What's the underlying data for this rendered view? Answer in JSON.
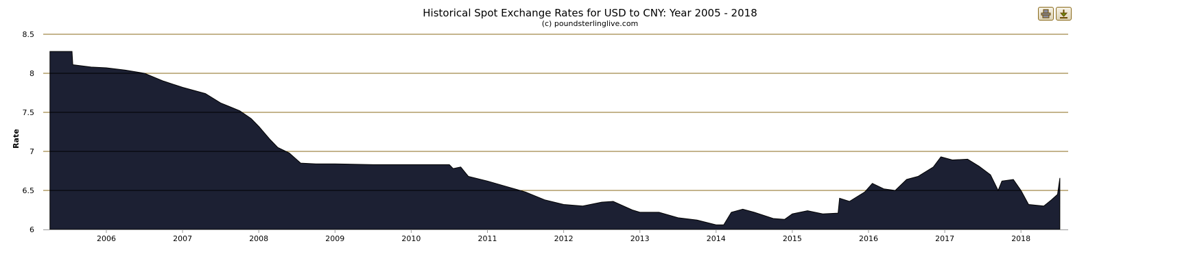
{
  "chart_data": {
    "type": "area",
    "title": "Historical Spot Exchange Rates for USD to CNY: Year 2005 - 2018",
    "subtitle": "(c) poundsterlinglive.com",
    "xlabel": "",
    "ylabel": "Rate",
    "ylim": [
      6,
      8.5
    ],
    "xlim": [
      2005.2,
      2018.65
    ],
    "yticks": [
      "6",
      "6.5",
      "7",
      "7.5",
      "8",
      "8.5"
    ],
    "xticks": [
      "2006",
      "2007",
      "2008",
      "2009",
      "2010",
      "2011",
      "2012",
      "2013",
      "2014",
      "2015",
      "2016",
      "2017",
      "2018"
    ],
    "grid": true,
    "colors": {
      "fill": "#1c2033",
      "grid": "#8a6a1a",
      "gridInside": "#000000"
    },
    "series": [
      {
        "name": "USD/CNY",
        "x": [
          2005.26,
          2005.55,
          2005.56,
          2005.8,
          2006.0,
          2006.25,
          2006.5,
          2006.75,
          2007.0,
          2007.3,
          2007.5,
          2007.6,
          2007.75,
          2007.9,
          2008.0,
          2008.15,
          2008.25,
          2008.4,
          2008.55,
          2008.75,
          2009.0,
          2009.5,
          2010.0,
          2010.45,
          2010.5,
          2010.55,
          2010.65,
          2010.75,
          2011.0,
          2011.25,
          2011.5,
          2011.75,
          2012.0,
          2012.25,
          2012.5,
          2012.65,
          2012.9,
          2013.0,
          2013.25,
          2013.5,
          2013.75,
          2014.0,
          2014.1,
          2014.2,
          2014.35,
          2014.5,
          2014.75,
          2014.9,
          2015.0,
          2015.2,
          2015.4,
          2015.6,
          2015.62,
          2015.75,
          2015.95,
          2016.05,
          2016.2,
          2016.35,
          2016.5,
          2016.65,
          2016.85,
          2016.95,
          2017.1,
          2017.3,
          2017.45,
          2017.6,
          2017.7,
          2017.75,
          2017.9,
          2018.0,
          2018.1,
          2018.3,
          2018.4,
          2018.48,
          2018.51
        ],
        "values": [
          8.28,
          8.28,
          8.11,
          8.08,
          8.07,
          8.04,
          8.0,
          7.9,
          7.82,
          7.74,
          7.62,
          7.58,
          7.52,
          7.42,
          7.32,
          7.15,
          7.05,
          6.98,
          6.85,
          6.84,
          6.84,
          6.83,
          6.83,
          6.83,
          6.83,
          6.78,
          6.8,
          6.68,
          6.62,
          6.55,
          6.48,
          6.38,
          6.32,
          6.3,
          6.35,
          6.36,
          6.25,
          6.22,
          6.22,
          6.15,
          6.12,
          6.06,
          6.06,
          6.22,
          6.26,
          6.22,
          6.14,
          6.13,
          6.2,
          6.24,
          6.2,
          6.21,
          6.4,
          6.36,
          6.48,
          6.59,
          6.52,
          6.5,
          6.64,
          6.68,
          6.8,
          6.93,
          6.89,
          6.9,
          6.81,
          6.7,
          6.5,
          6.62,
          6.64,
          6.5,
          6.32,
          6.3,
          6.38,
          6.45,
          6.66
        ]
      }
    ]
  },
  "toolbar": {
    "print_icon": "print-icon",
    "download_icon": "download-icon"
  }
}
